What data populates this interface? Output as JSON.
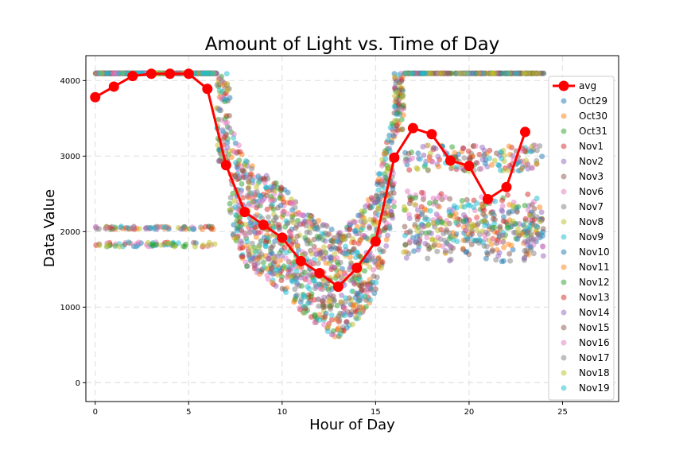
{
  "chart_data": {
    "type": "scatter",
    "title": "Amount of Light vs. Time of Day",
    "xlabel": "Hour of Day",
    "ylabel": "Data Value",
    "xlim": [
      -0.5,
      28
    ],
    "ylim": [
      -250,
      4330
    ],
    "xticks": [
      0,
      5,
      10,
      15,
      20,
      25
    ],
    "yticks": [
      0,
      1000,
      2000,
      3000,
      4000
    ],
    "grid": true,
    "legend_position": "right",
    "avg": {
      "name": "avg",
      "color": "#ff0000",
      "x": [
        0,
        1,
        2,
        3,
        4,
        5,
        6,
        7,
        8,
        9,
        10,
        11,
        12,
        13,
        14,
        15,
        16,
        17,
        18,
        19,
        20,
        21,
        22,
        23
      ],
      "y": [
        3780,
        3920,
        4060,
        4090,
        4090,
        4090,
        3890,
        2880,
        2260,
        2090,
        1920,
        1610,
        1450,
        1270,
        1520,
        1870,
        2980,
        3370,
        3290,
        2940,
        2870,
        2430,
        2590,
        3320
      ]
    },
    "series": [
      {
        "name": "Oct29",
        "color": "#1f77b4"
      },
      {
        "name": "Oct30",
        "color": "#ff7f0e"
      },
      {
        "name": "Oct31",
        "color": "#2ca02c"
      },
      {
        "name": "Nov1",
        "color": "#d62728"
      },
      {
        "name": "Nov2",
        "color": "#9467bd"
      },
      {
        "name": "Nov3",
        "color": "#8c564b"
      },
      {
        "name": "Nov6",
        "color": "#e377c2"
      },
      {
        "name": "Nov7",
        "color": "#7f7f7f"
      },
      {
        "name": "Nov8",
        "color": "#bcbd22"
      },
      {
        "name": "Nov9",
        "color": "#17becf"
      },
      {
        "name": "Nov10",
        "color": "#1f77b4"
      },
      {
        "name": "Nov11",
        "color": "#ff7f0e"
      },
      {
        "name": "Nov12",
        "color": "#2ca02c"
      },
      {
        "name": "Nov13",
        "color": "#d62728"
      },
      {
        "name": "Nov14",
        "color": "#9467bd"
      },
      {
        "name": "Nov15",
        "color": "#8c564b"
      },
      {
        "name": "Nov16",
        "color": "#e377c2"
      },
      {
        "name": "Nov17",
        "color": "#7f7f7f"
      },
      {
        "name": "Nov18",
        "color": "#bcbd22"
      },
      {
        "name": "Nov19",
        "color": "#17becf"
      }
    ]
  }
}
